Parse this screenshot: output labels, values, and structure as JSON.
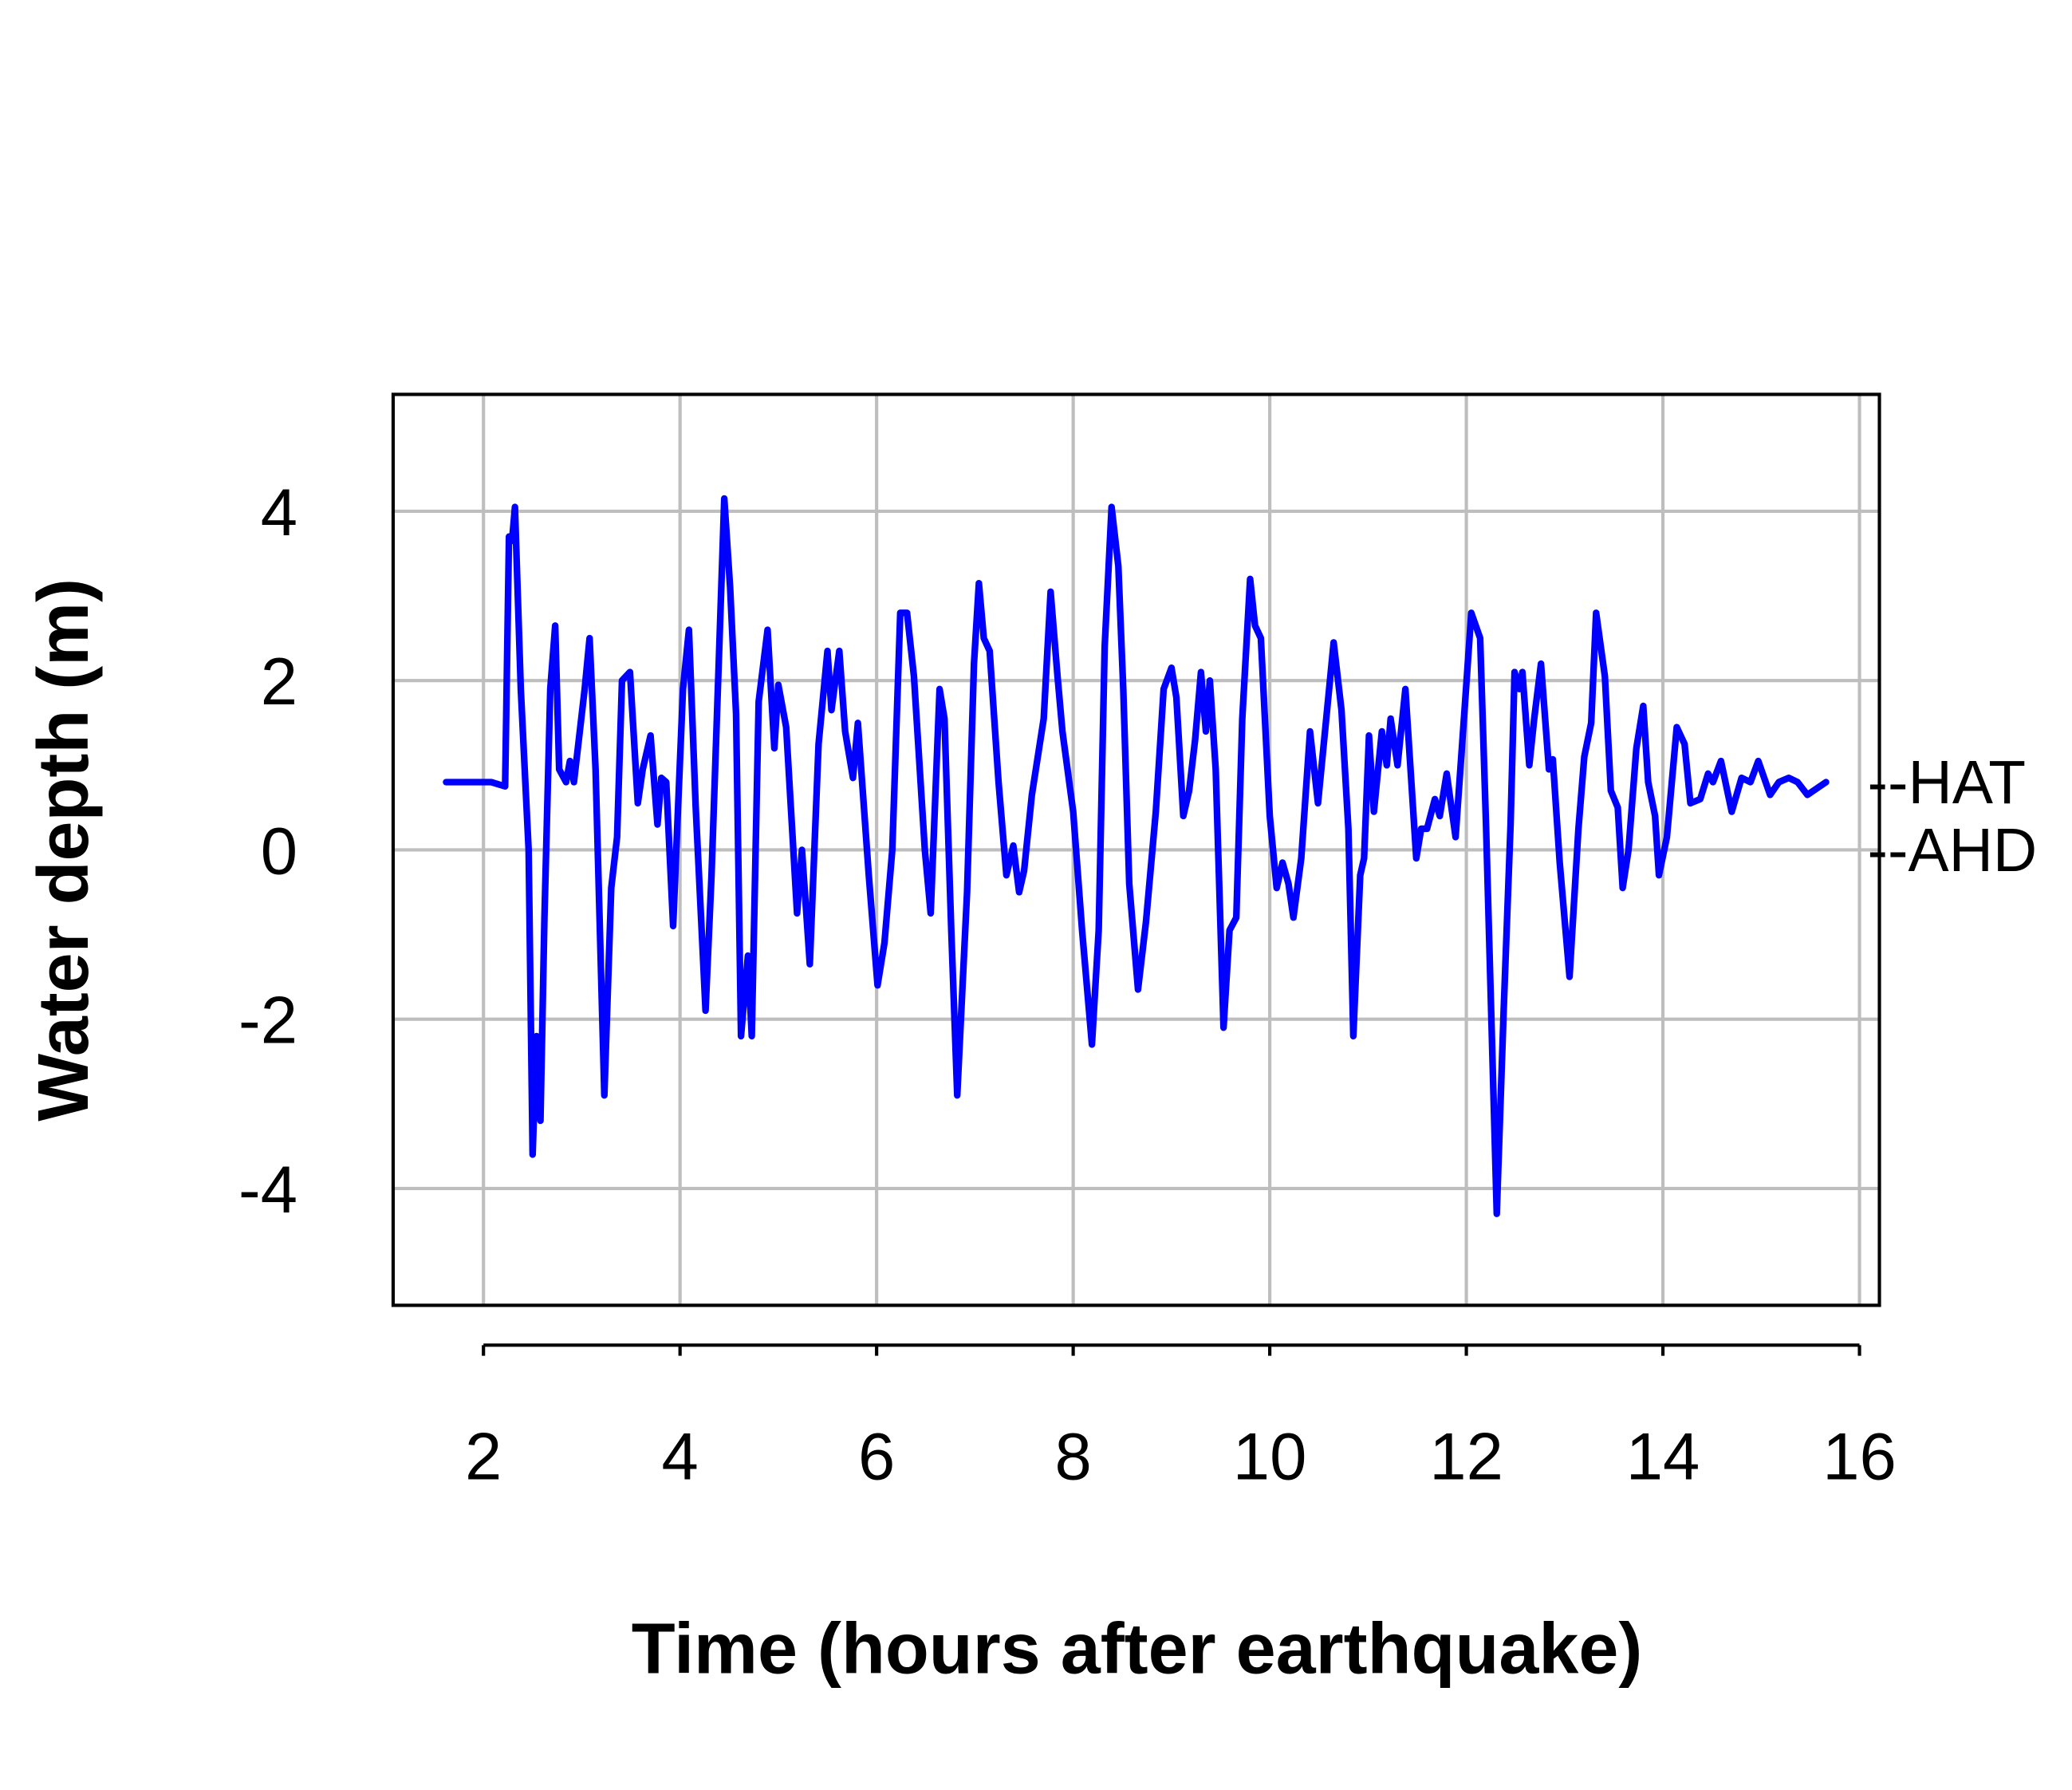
{
  "chart_data": {
    "type": "line",
    "title": "",
    "xlabel": "Time (hours after earthquake)",
    "ylabel": "Water depth (m)",
    "xlim": [
      1.08,
      16.1
    ],
    "ylim": [
      -5.38,
      5.38
    ],
    "xticks": [
      2,
      4,
      6,
      8,
      10,
      12,
      14,
      16
    ],
    "yticks": [
      -4,
      -2,
      0,
      2,
      4
    ],
    "grid": true,
    "series": [
      {
        "name": "Water depth",
        "color": "#0000FF",
        "x": [
          1.62,
          2.08,
          2.22,
          2.26,
          2.29,
          2.32,
          2.38,
          2.46,
          2.5,
          2.54,
          2.58,
          2.62,
          2.68,
          2.73,
          2.77,
          2.84,
          2.88,
          2.92,
          3.03,
          3.08,
          3.14,
          3.23,
          3.3,
          3.36,
          3.41,
          3.49,
          3.57,
          3.62,
          3.7,
          3.77,
          3.81,
          3.86,
          3.93,
          4.03,
          4.09,
          4.16,
          4.26,
          4.32,
          4.39,
          4.45,
          4.51,
          4.57,
          4.62,
          4.69,
          4.73,
          4.8,
          4.89,
          4.96,
          5.0,
          5.08,
          5.19,
          5.24,
          5.32,
          5.41,
          5.5,
          5.54,
          5.62,
          5.68,
          5.76,
          5.81,
          5.92,
          6.01,
          6.08,
          6.16,
          6.24,
          6.31,
          6.38,
          6.49,
          6.55,
          6.64,
          6.69,
          6.76,
          6.82,
          6.92,
          6.99,
          7.04,
          7.09,
          7.15,
          7.24,
          7.32,
          7.39,
          7.45,
          7.5,
          7.58,
          7.7,
          7.77,
          7.84,
          7.89,
          8.0,
          8.09,
          8.19,
          8.26,
          8.32,
          8.39,
          8.46,
          8.51,
          8.57,
          8.66,
          8.74,
          8.84,
          8.92,
          9.0,
          9.05,
          9.12,
          9.18,
          9.24,
          9.3,
          9.35,
          9.39,
          9.45,
          9.53,
          9.59,
          9.66,
          9.72,
          9.8,
          9.85,
          9.91,
          10.0,
          10.07,
          10.13,
          10.19,
          10.24,
          10.32,
          10.41,
          10.49,
          10.57,
          10.65,
          10.73,
          10.8,
          10.85,
          10.92,
          10.96,
          11.01,
          11.06,
          11.14,
          11.19,
          11.23,
          11.3,
          11.38,
          11.49,
          11.54,
          11.6,
          11.68,
          11.73,
          11.8,
          11.89,
          11.99,
          12.05,
          12.14,
          12.2,
          12.31,
          12.38,
          12.45,
          12.49,
          12.54,
          12.57,
          12.64,
          12.69,
          12.76,
          12.84,
          12.88,
          12.95,
          13.05,
          13.14,
          13.2,
          13.27,
          13.32,
          13.41,
          13.47,
          13.54,
          13.59,
          13.65,
          13.73,
          13.8,
          13.85,
          13.92,
          13.96,
          14.04,
          14.14,
          14.22,
          14.28,
          14.38,
          14.46,
          14.51,
          14.59,
          14.7,
          14.8,
          14.89,
          14.97,
          15.09,
          15.18,
          15.28,
          15.37,
          15.47,
          15.66
        ],
        "y": [
          0.8,
          0.8,
          0.75,
          3.7,
          3.65,
          4.05,
          1.9,
          0.0,
          -3.6,
          -2.2,
          -3.2,
          -0.8,
          1.9,
          2.65,
          0.95,
          0.8,
          1.05,
          0.8,
          1.9,
          2.5,
          0.95,
          -2.9,
          -0.45,
          0.15,
          2.0,
          2.1,
          0.55,
          0.95,
          1.35,
          0.3,
          0.85,
          0.8,
          -0.9,
          1.9,
          2.6,
          0.5,
          -1.9,
          -0.3,
          2.1,
          4.15,
          3.1,
          1.6,
          -2.2,
          -1.25,
          -2.2,
          1.75,
          2.6,
          1.2,
          1.95,
          1.45,
          -0.75,
          0.0,
          -1.35,
          1.25,
          2.35,
          1.65,
          2.35,
          1.4,
          0.85,
          1.5,
          -0.3,
          -1.6,
          -1.1,
          0.0,
          2.8,
          2.8,
          2.05,
          0.0,
          -0.75,
          1.9,
          1.55,
          -0.95,
          -2.9,
          -0.5,
          2.2,
          3.15,
          2.5,
          2.35,
          0.8,
          -0.3,
          0.05,
          -0.5,
          -0.25,
          0.65,
          1.55,
          3.05,
          2.05,
          1.4,
          0.45,
          -0.95,
          -2.3,
          -0.95,
          2.4,
          4.05,
          3.35,
          1.9,
          -0.4,
          -1.65,
          -0.85,
          0.45,
          1.9,
          2.15,
          1.8,
          0.4,
          0.7,
          1.3,
          2.1,
          1.4,
          2.0,
          0.95,
          -2.1,
          -0.95,
          -0.8,
          1.55,
          3.2,
          2.65,
          2.5,
          0.4,
          -0.45,
          -0.15,
          -0.4,
          -0.8,
          -0.1,
          1.4,
          0.55,
          1.5,
          2.45,
          1.65,
          0.25,
          -2.2,
          -0.3,
          -0.1,
          1.35,
          0.45,
          1.4,
          1.0,
          1.55,
          1.0,
          1.9,
          -0.1,
          0.25,
          0.25,
          0.6,
          0.4,
          0.9,
          0.15,
          1.8,
          2.8,
          2.5,
          0.3,
          -4.3,
          -1.9,
          0.3,
          2.1,
          1.9,
          2.1,
          1.0,
          1.55,
          2.2,
          0.95,
          1.07,
          -0.15,
          -1.5,
          0.25,
          1.1,
          1.5,
          2.8,
          2.05,
          0.7,
          0.5,
          -0.45,
          0.0,
          1.2,
          1.7,
          0.8,
          0.4,
          -0.3,
          0.15,
          1.45,
          1.25,
          0.55,
          0.6,
          0.9,
          0.8,
          1.05,
          0.45,
          0.85,
          0.8,
          1.05,
          0.65,
          0.8,
          0.85,
          0.8,
          0.65,
          0.8
        ]
      }
    ],
    "annotations": [
      {
        "text": "--HAT",
        "y": 0.8
      },
      {
        "text": "--AHD",
        "y": 0.0
      }
    ]
  }
}
